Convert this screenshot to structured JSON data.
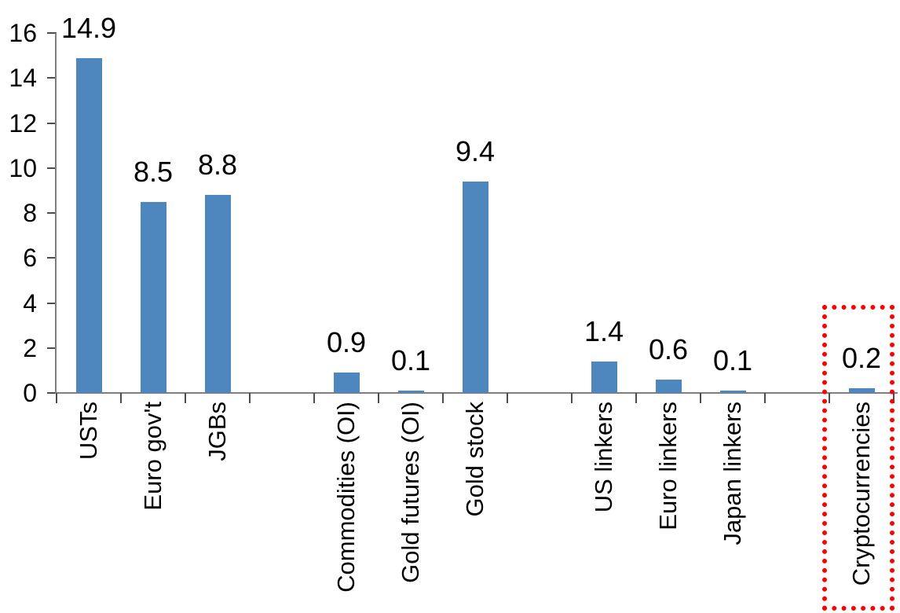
{
  "chart_data": {
    "type": "bar",
    "title": "",
    "xlabel": "",
    "ylabel": "",
    "ylim": [
      0,
      16
    ],
    "yticks": [
      0,
      2,
      4,
      6,
      8,
      10,
      12,
      14,
      16
    ],
    "grid": false,
    "legend": false,
    "bar_color": "#4E87BD",
    "axis_line_color": "#7F7F7F",
    "tick_color": "#4d4d4d",
    "text_color": "#000000",
    "highlight_box_color": "#FF0000",
    "slots": 13,
    "items": [
      {
        "label": "USTs",
        "value": 14.9,
        "value_label": "14.9",
        "slot": 0,
        "highlighted": false
      },
      {
        "label": "Euro gov't",
        "value": 8.5,
        "value_label": "8.5",
        "slot": 1,
        "highlighted": false
      },
      {
        "label": "JGBs",
        "value": 8.8,
        "value_label": "8.8",
        "slot": 2,
        "highlighted": false
      },
      {
        "label": "Commodities (OI)",
        "value": 0.9,
        "value_label": "0.9",
        "slot": 4,
        "highlighted": false
      },
      {
        "label": "Gold futures (OI)",
        "value": 0.1,
        "value_label": "0.1",
        "slot": 5,
        "highlighted": false
      },
      {
        "label": "Gold stock",
        "value": 9.4,
        "value_label": "9.4",
        "slot": 6,
        "highlighted": false
      },
      {
        "label": "US linkers",
        "value": 1.4,
        "value_label": "1.4",
        "slot": 8,
        "highlighted": false
      },
      {
        "label": "Euro linkers",
        "value": 0.6,
        "value_label": "0.6",
        "slot": 9,
        "highlighted": false
      },
      {
        "label": "Japan linkers",
        "value": 0.1,
        "value_label": "0.1",
        "slot": 10,
        "highlighted": false
      },
      {
        "label": "Cryptocurrencies",
        "value": 0.2,
        "value_label": "0.2",
        "slot": 12,
        "highlighted": true
      }
    ],
    "annotation": {
      "type": "red-dotted-box",
      "around": "Cryptocurrencies"
    }
  }
}
